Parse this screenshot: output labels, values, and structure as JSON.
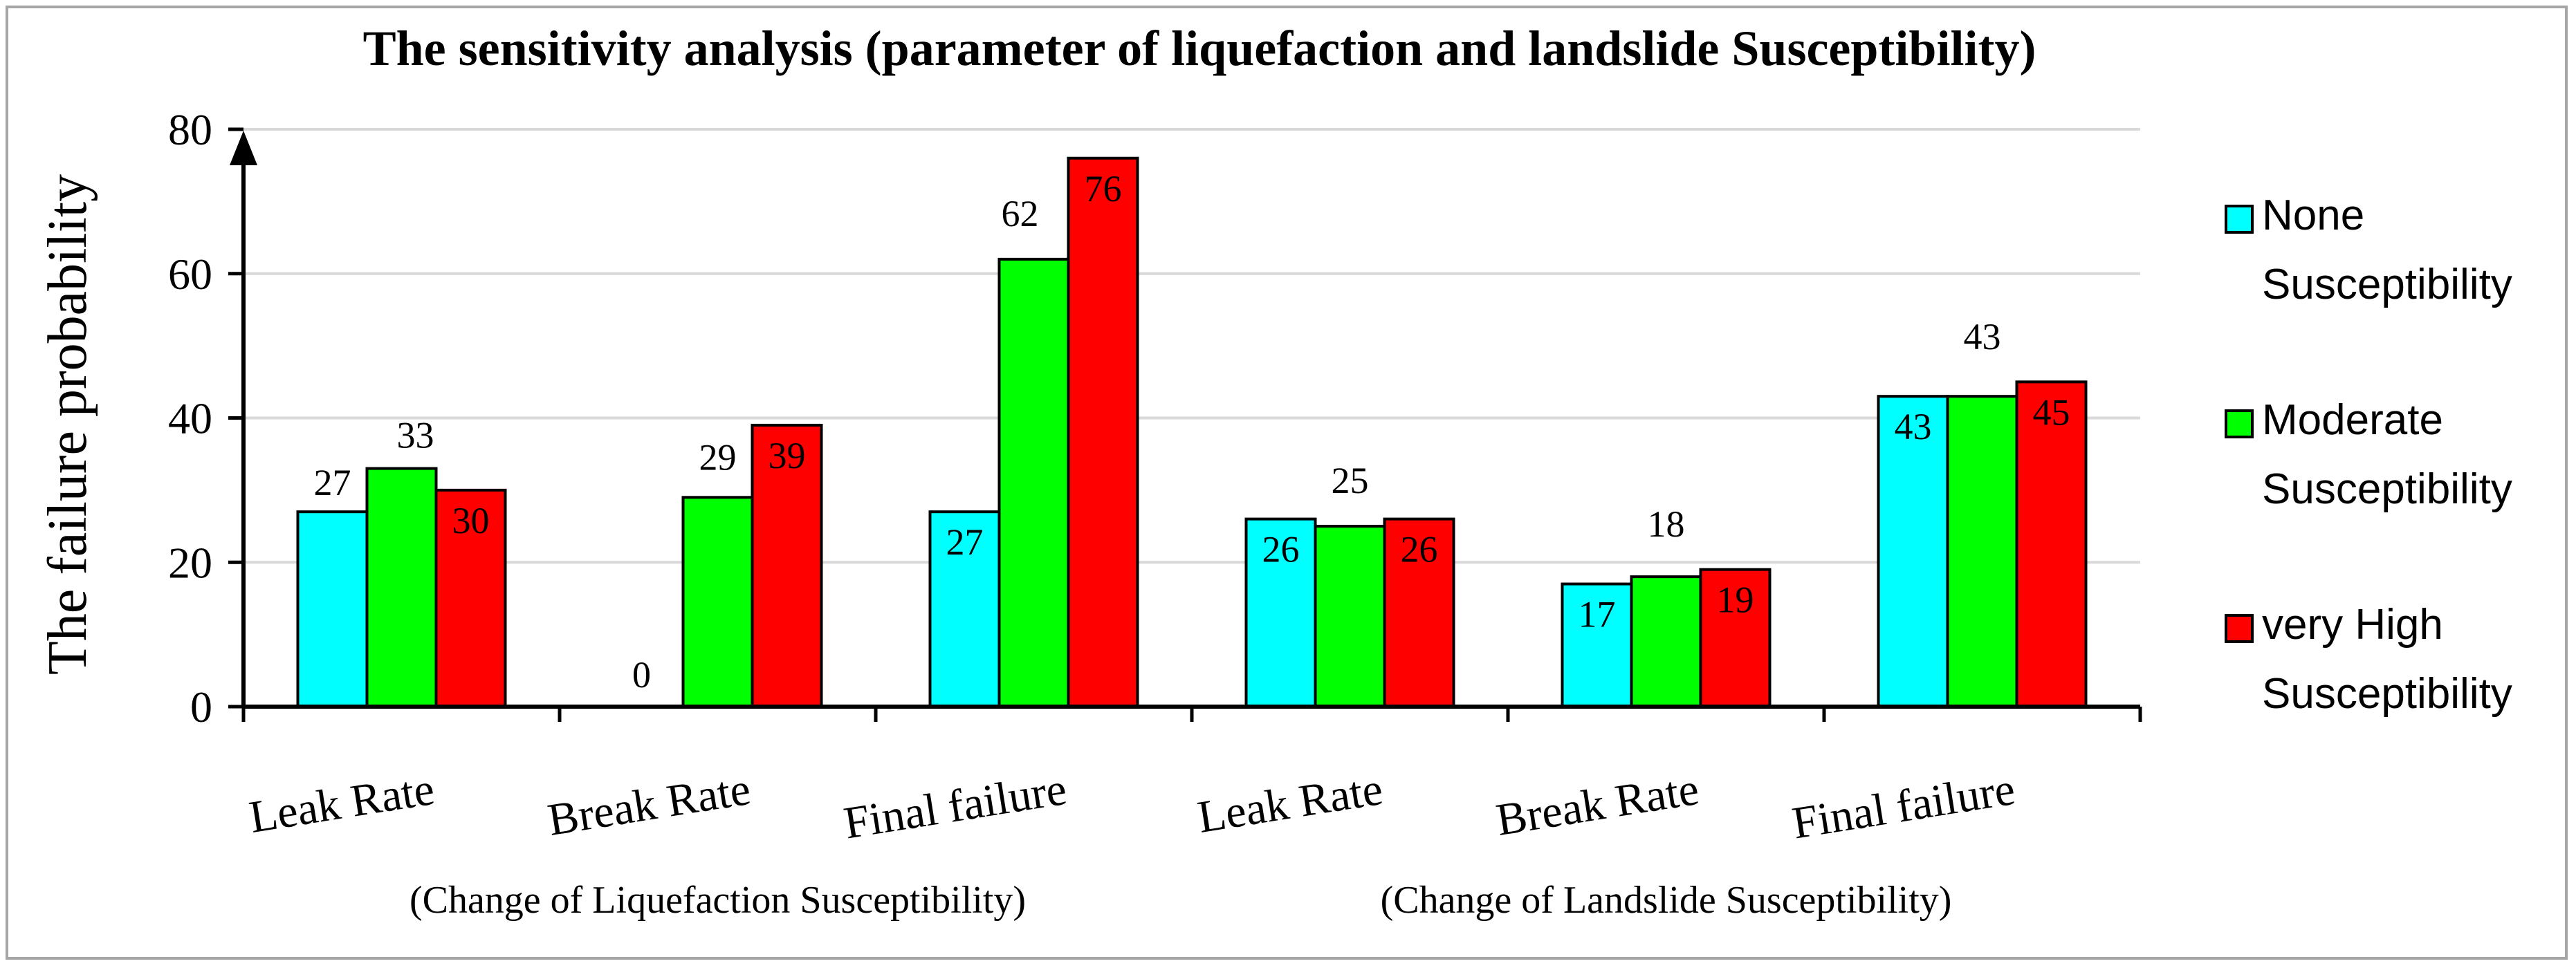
{
  "chart_data": {
    "type": "bar",
    "title": "The sensitivity analysis (parameter of liquefaction and landslide Susceptibility)",
    "ylabel": "The failure probability",
    "xlabel": "",
    "ylim": [
      0,
      80
    ],
    "yticks": [
      0,
      20,
      40,
      60,
      80
    ],
    "grid": true,
    "legend_position": "right",
    "categories": [
      "Leak Rate",
      "Break Rate",
      "Final failure",
      "Leak Rate",
      "Break Rate",
      "Final failure"
    ],
    "groups": [
      {
        "label": "(Change of Liquefaction Susceptibility)",
        "span": [
          0,
          2
        ]
      },
      {
        "label": "(Change of Landslide Susceptibility)",
        "span": [
          3,
          5
        ]
      }
    ],
    "series": [
      {
        "name": "None Susceptibility",
        "legend_lines": [
          "None",
          "Susceptibility"
        ],
        "color": "#00ffff",
        "values": [
          27,
          0,
          27,
          26,
          17,
          43
        ],
        "labels": [
          "27",
          "0",
          "27",
          "26",
          "17",
          "43"
        ]
      },
      {
        "name": "Moderate Susceptibility",
        "legend_lines": [
          "Moderate",
          "Susceptibility"
        ],
        "color": "#00ff00",
        "values": [
          33,
          29,
          62,
          25,
          18,
          43
        ],
        "labels": [
          "33",
          "29",
          "62",
          "25",
          "18",
          "43"
        ]
      },
      {
        "name": "very High Susceptibility",
        "legend_lines": [
          "very High",
          "Susceptibility"
        ],
        "color": "#ff0000",
        "values": [
          30,
          39,
          76,
          26,
          19,
          45
        ],
        "labels": [
          "30",
          "39",
          "76",
          "26",
          "19",
          "45"
        ]
      }
    ]
  }
}
